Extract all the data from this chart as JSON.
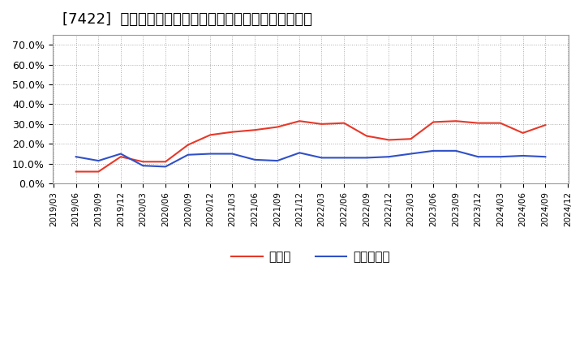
{
  "title": "[7422]  現預金、有利子負債の総資産に対する比率の推移",
  "cash_dates": [
    "2019/06",
    "2019/09",
    "2019/12",
    "2020/03",
    "2020/06",
    "2020/09",
    "2020/12",
    "2021/03",
    "2021/06",
    "2021/09",
    "2021/12",
    "2022/03",
    "2022/06",
    "2022/09",
    "2022/12",
    "2023/03",
    "2023/06",
    "2023/09",
    "2023/12",
    "2024/03",
    "2024/06",
    "2024/09"
  ],
  "cash_values": [
    0.06,
    0.06,
    0.135,
    0.11,
    0.11,
    0.195,
    0.245,
    0.26,
    0.27,
    0.285,
    0.315,
    0.3,
    0.305,
    0.24,
    0.22,
    0.225,
    0.31,
    0.315,
    0.305,
    0.305,
    0.255,
    0.295
  ],
  "debt_dates": [
    "2019/06",
    "2019/09",
    "2019/12",
    "2020/03",
    "2020/06",
    "2020/09",
    "2020/12",
    "2021/03",
    "2021/06",
    "2021/09",
    "2021/12",
    "2022/03",
    "2022/06",
    "2022/09",
    "2022/12",
    "2023/03",
    "2023/06",
    "2023/09",
    "2023/12",
    "2024/03",
    "2024/06",
    "2024/09"
  ],
  "debt_values": [
    0.135,
    0.115,
    0.15,
    0.09,
    0.085,
    0.145,
    0.15,
    0.15,
    0.12,
    0.115,
    0.155,
    0.13,
    0.13,
    0.13,
    0.135,
    0.15,
    0.165,
    0.165,
    0.135,
    0.135,
    0.14,
    0.135
  ],
  "cash_color": "#e83828",
  "debt_color": "#3050c8",
  "background_color": "#ffffff",
  "plot_background": "#ffffff",
  "grid_color": "#aaaaaa",
  "ylim": [
    0.0,
    0.75
  ],
  "yticks": [
    0.0,
    0.1,
    0.2,
    0.3,
    0.4,
    0.5,
    0.6,
    0.7
  ],
  "legend_cash": "現預金",
  "legend_debt": "有利子負債",
  "title_fontsize": 13,
  "legend_fontsize": 11
}
